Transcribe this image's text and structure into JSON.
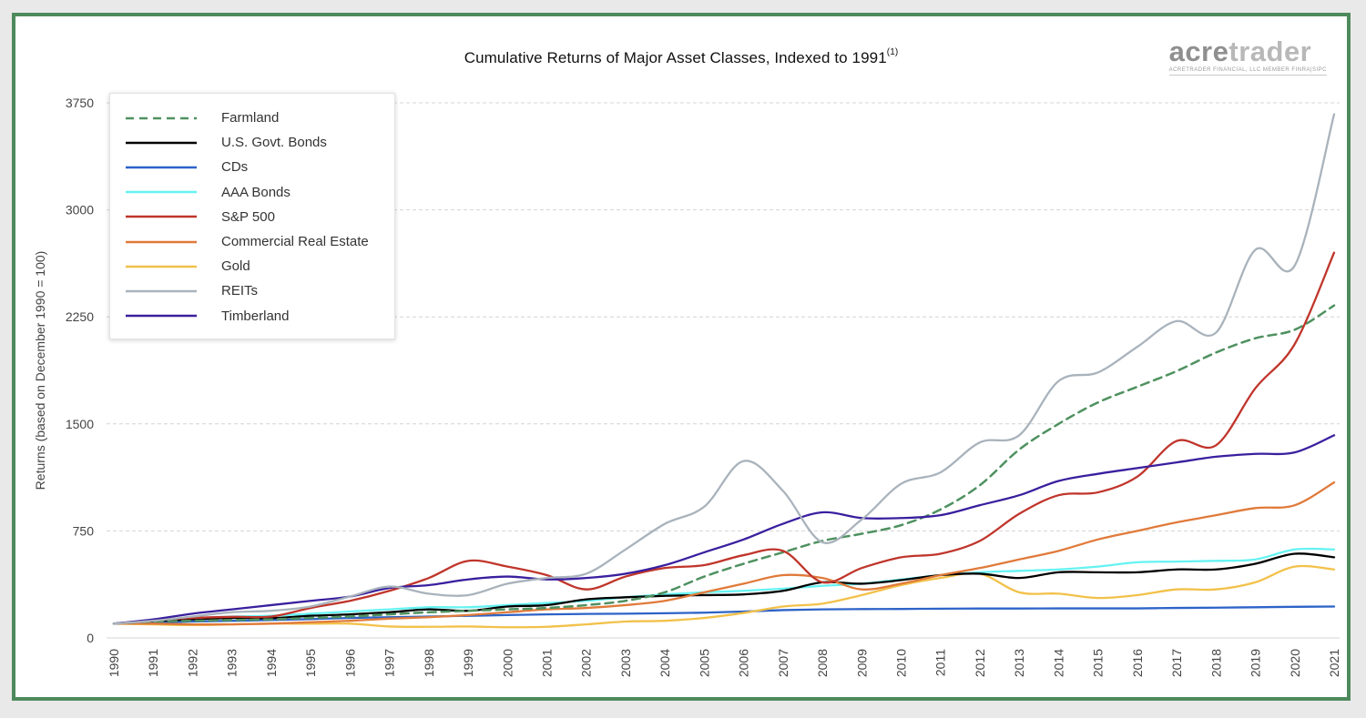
{
  "logo": {
    "text_dark": "acre",
    "text_light": "trader",
    "subtitle": "ACRETRADER FINANCIAL, LLC MEMBER FINRA|SIPC"
  },
  "chart_data": {
    "type": "line",
    "title": "Cumulative Returns of Major Asset Classes, Indexed to 1991",
    "title_superscript": "(1)",
    "xlabel": "",
    "ylabel": "Returns (based on December 1990 = 100)",
    "ylim": [
      0,
      3750
    ],
    "yticks": [
      0,
      750,
      1500,
      2250,
      3000,
      3750
    ],
    "grid": "horizontal dashed",
    "legend_position": "top-left",
    "x": [
      1990,
      1991,
      1992,
      1993,
      1994,
      1995,
      1996,
      1997,
      1998,
      1999,
      2000,
      2001,
      2002,
      2003,
      2004,
      2005,
      2006,
      2007,
      2008,
      2009,
      2010,
      2011,
      2012,
      2013,
      2014,
      2015,
      2016,
      2017,
      2018,
      2019,
      2020,
      2021
    ],
    "series": [
      {
        "name": "Farmland",
        "color": "#4f9160",
        "dash": true,
        "values": [
          100,
          115,
          120,
          125,
          130,
          140,
          150,
          165,
          180,
          190,
          200,
          210,
          230,
          260,
          320,
          430,
          520,
          600,
          680,
          730,
          790,
          900,
          1070,
          1320,
          1500,
          1650,
          1760,
          1870,
          2000,
          2100,
          2160,
          2330
        ]
      },
      {
        "name": "U.S. Govt. Bonds",
        "color": "#000000",
        "dash": false,
        "values": [
          100,
          117,
          130,
          140,
          138,
          155,
          165,
          180,
          200,
          190,
          220,
          230,
          270,
          285,
          295,
          300,
          305,
          330,
          390,
          380,
          405,
          440,
          450,
          420,
          460,
          460,
          460,
          480,
          480,
          520,
          590,
          565
        ]
      },
      {
        "name": "CDs",
        "color": "#2d63c8",
        "dash": false,
        "values": [
          100,
          108,
          115,
          120,
          125,
          132,
          140,
          145,
          150,
          155,
          160,
          165,
          168,
          170,
          173,
          177,
          185,
          195,
          200,
          202,
          203,
          205,
          206,
          206,
          207,
          207,
          207,
          210,
          212,
          215,
          218,
          220
        ]
      },
      {
        "name": "AAA Bonds",
        "color": "#66f2f2",
        "dash": false,
        "values": [
          100,
          120,
          135,
          150,
          155,
          170,
          185,
          200,
          215,
          215,
          230,
          245,
          260,
          285,
          305,
          320,
          330,
          345,
          365,
          380,
          410,
          440,
          460,
          470,
          480,
          500,
          530,
          535,
          540,
          550,
          620,
          620
        ]
      },
      {
        "name": "S&P 500",
        "color": "#c0352b",
        "dash": false,
        "values": [
          100,
          125,
          140,
          148,
          150,
          210,
          260,
          330,
          420,
          540,
          500,
          440,
          340,
          430,
          490,
          510,
          580,
          610,
          390,
          490,
          565,
          590,
          680,
          870,
          1000,
          1020,
          1130,
          1380,
          1350,
          1750,
          2060,
          2700
        ]
      },
      {
        "name": "Commercial Real Estate",
        "color": "#e07a3a",
        "dash": false,
        "values": [
          100,
          100,
          95,
          95,
          100,
          110,
          120,
          135,
          145,
          160,
          180,
          200,
          210,
          230,
          260,
          320,
          380,
          440,
          420,
          340,
          380,
          440,
          490,
          550,
          610,
          690,
          750,
          810,
          860,
          910,
          930,
          1090
        ]
      },
      {
        "name": "Gold",
        "color": "#f2c14a",
        "dash": false,
        "values": [
          100,
          95,
          90,
          95,
          100,
          100,
          100,
          80,
          78,
          80,
          75,
          78,
          95,
          115,
          120,
          140,
          175,
          220,
          240,
          300,
          370,
          420,
          450,
          320,
          310,
          280,
          300,
          340,
          340,
          390,
          500,
          480
        ]
      },
      {
        "name": "REITs",
        "color": "#a9b3bc",
        "dash": false,
        "values": [
          100,
          120,
          150,
          180,
          190,
          220,
          290,
          360,
          310,
          300,
          380,
          420,
          450,
          620,
          800,
          920,
          1240,
          1030,
          670,
          830,
          1080,
          1160,
          1370,
          1420,
          1800,
          1860,
          2040,
          2220,
          2140,
          2720,
          2610,
          3670
        ]
      },
      {
        "name": "Timberland",
        "color": "#3a1f9e",
        "dash": false,
        "values": [
          100,
          130,
          170,
          200,
          230,
          260,
          290,
          350,
          370,
          410,
          430,
          410,
          420,
          450,
          510,
          600,
          690,
          800,
          880,
          840,
          840,
          860,
          930,
          1000,
          1100,
          1150,
          1190,
          1230,
          1270,
          1290,
          1300,
          1420
        ]
      }
    ]
  }
}
